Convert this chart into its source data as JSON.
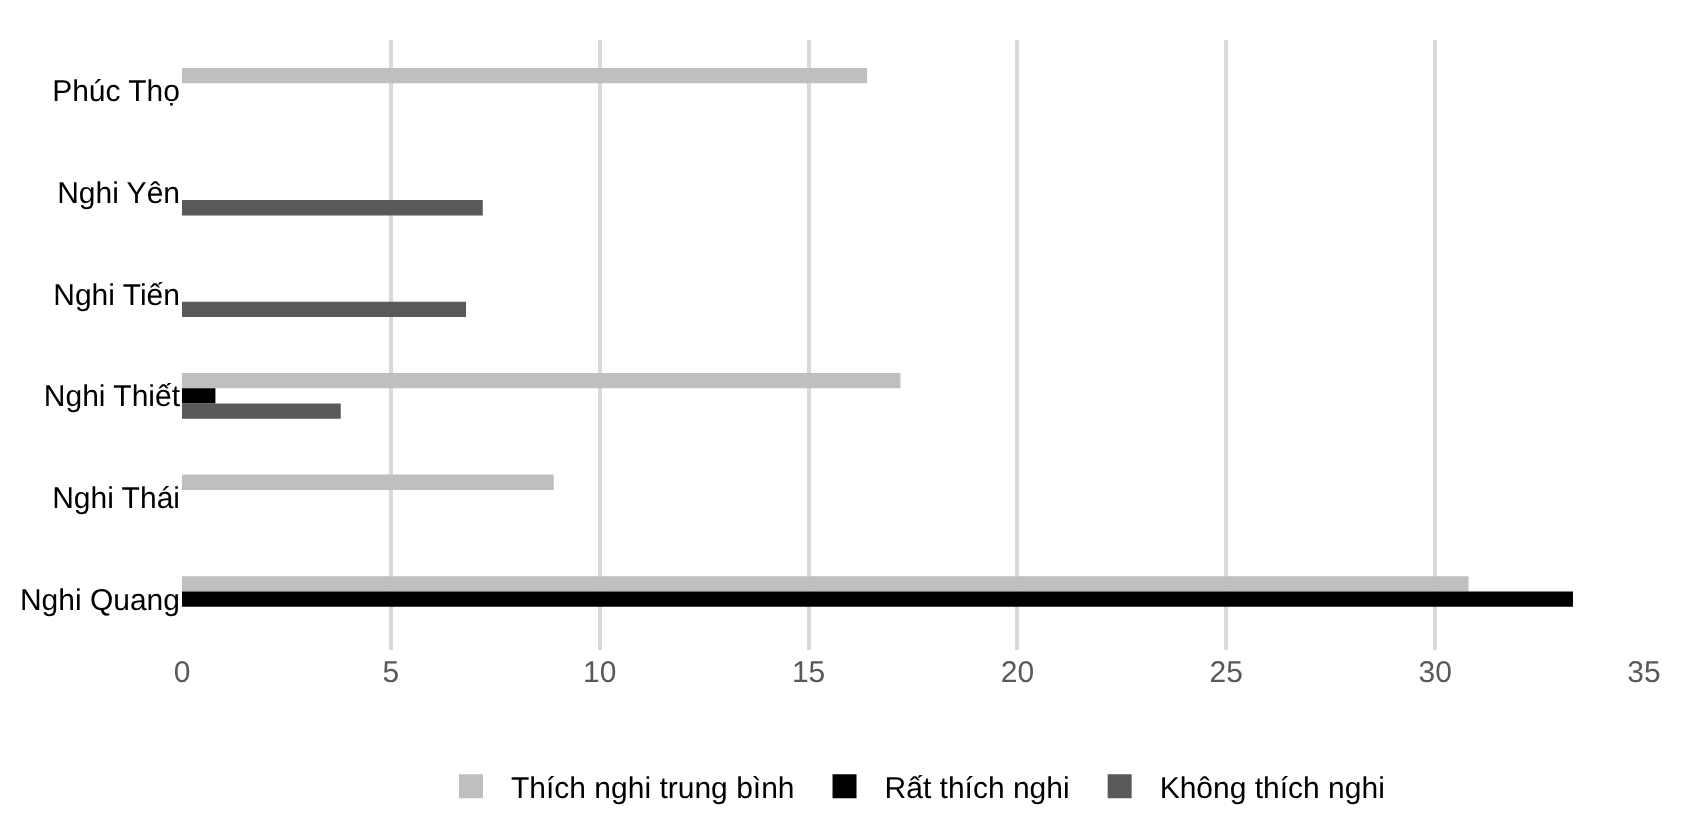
{
  "chart_data": {
    "type": "bar",
    "orientation": "horizontal",
    "categories": [
      "Phúc Thọ",
      "Nghi Yên",
      "Nghi Tiến",
      "Nghi Thiết",
      "Nghi Thái",
      "Nghi Quang"
    ],
    "series": [
      {
        "name": "Thích nghi trung bình",
        "color": "#bfbfbf",
        "values": [
          16.4,
          null,
          null,
          17.2,
          8.9,
          30.8
        ]
      },
      {
        "name": "Rất thích nghi",
        "color": "#000000",
        "values": [
          null,
          null,
          null,
          0.8,
          null,
          33.3
        ]
      },
      {
        "name": "Không thích nghi",
        "color": "#595959",
        "values": [
          null,
          7.2,
          6.8,
          3.8,
          null,
          null
        ]
      }
    ],
    "xlim": [
      0,
      35
    ],
    "xticks": [
      0,
      5,
      10,
      15,
      20,
      25,
      30,
      35
    ],
    "grid": "x",
    "legend": "bottom"
  }
}
